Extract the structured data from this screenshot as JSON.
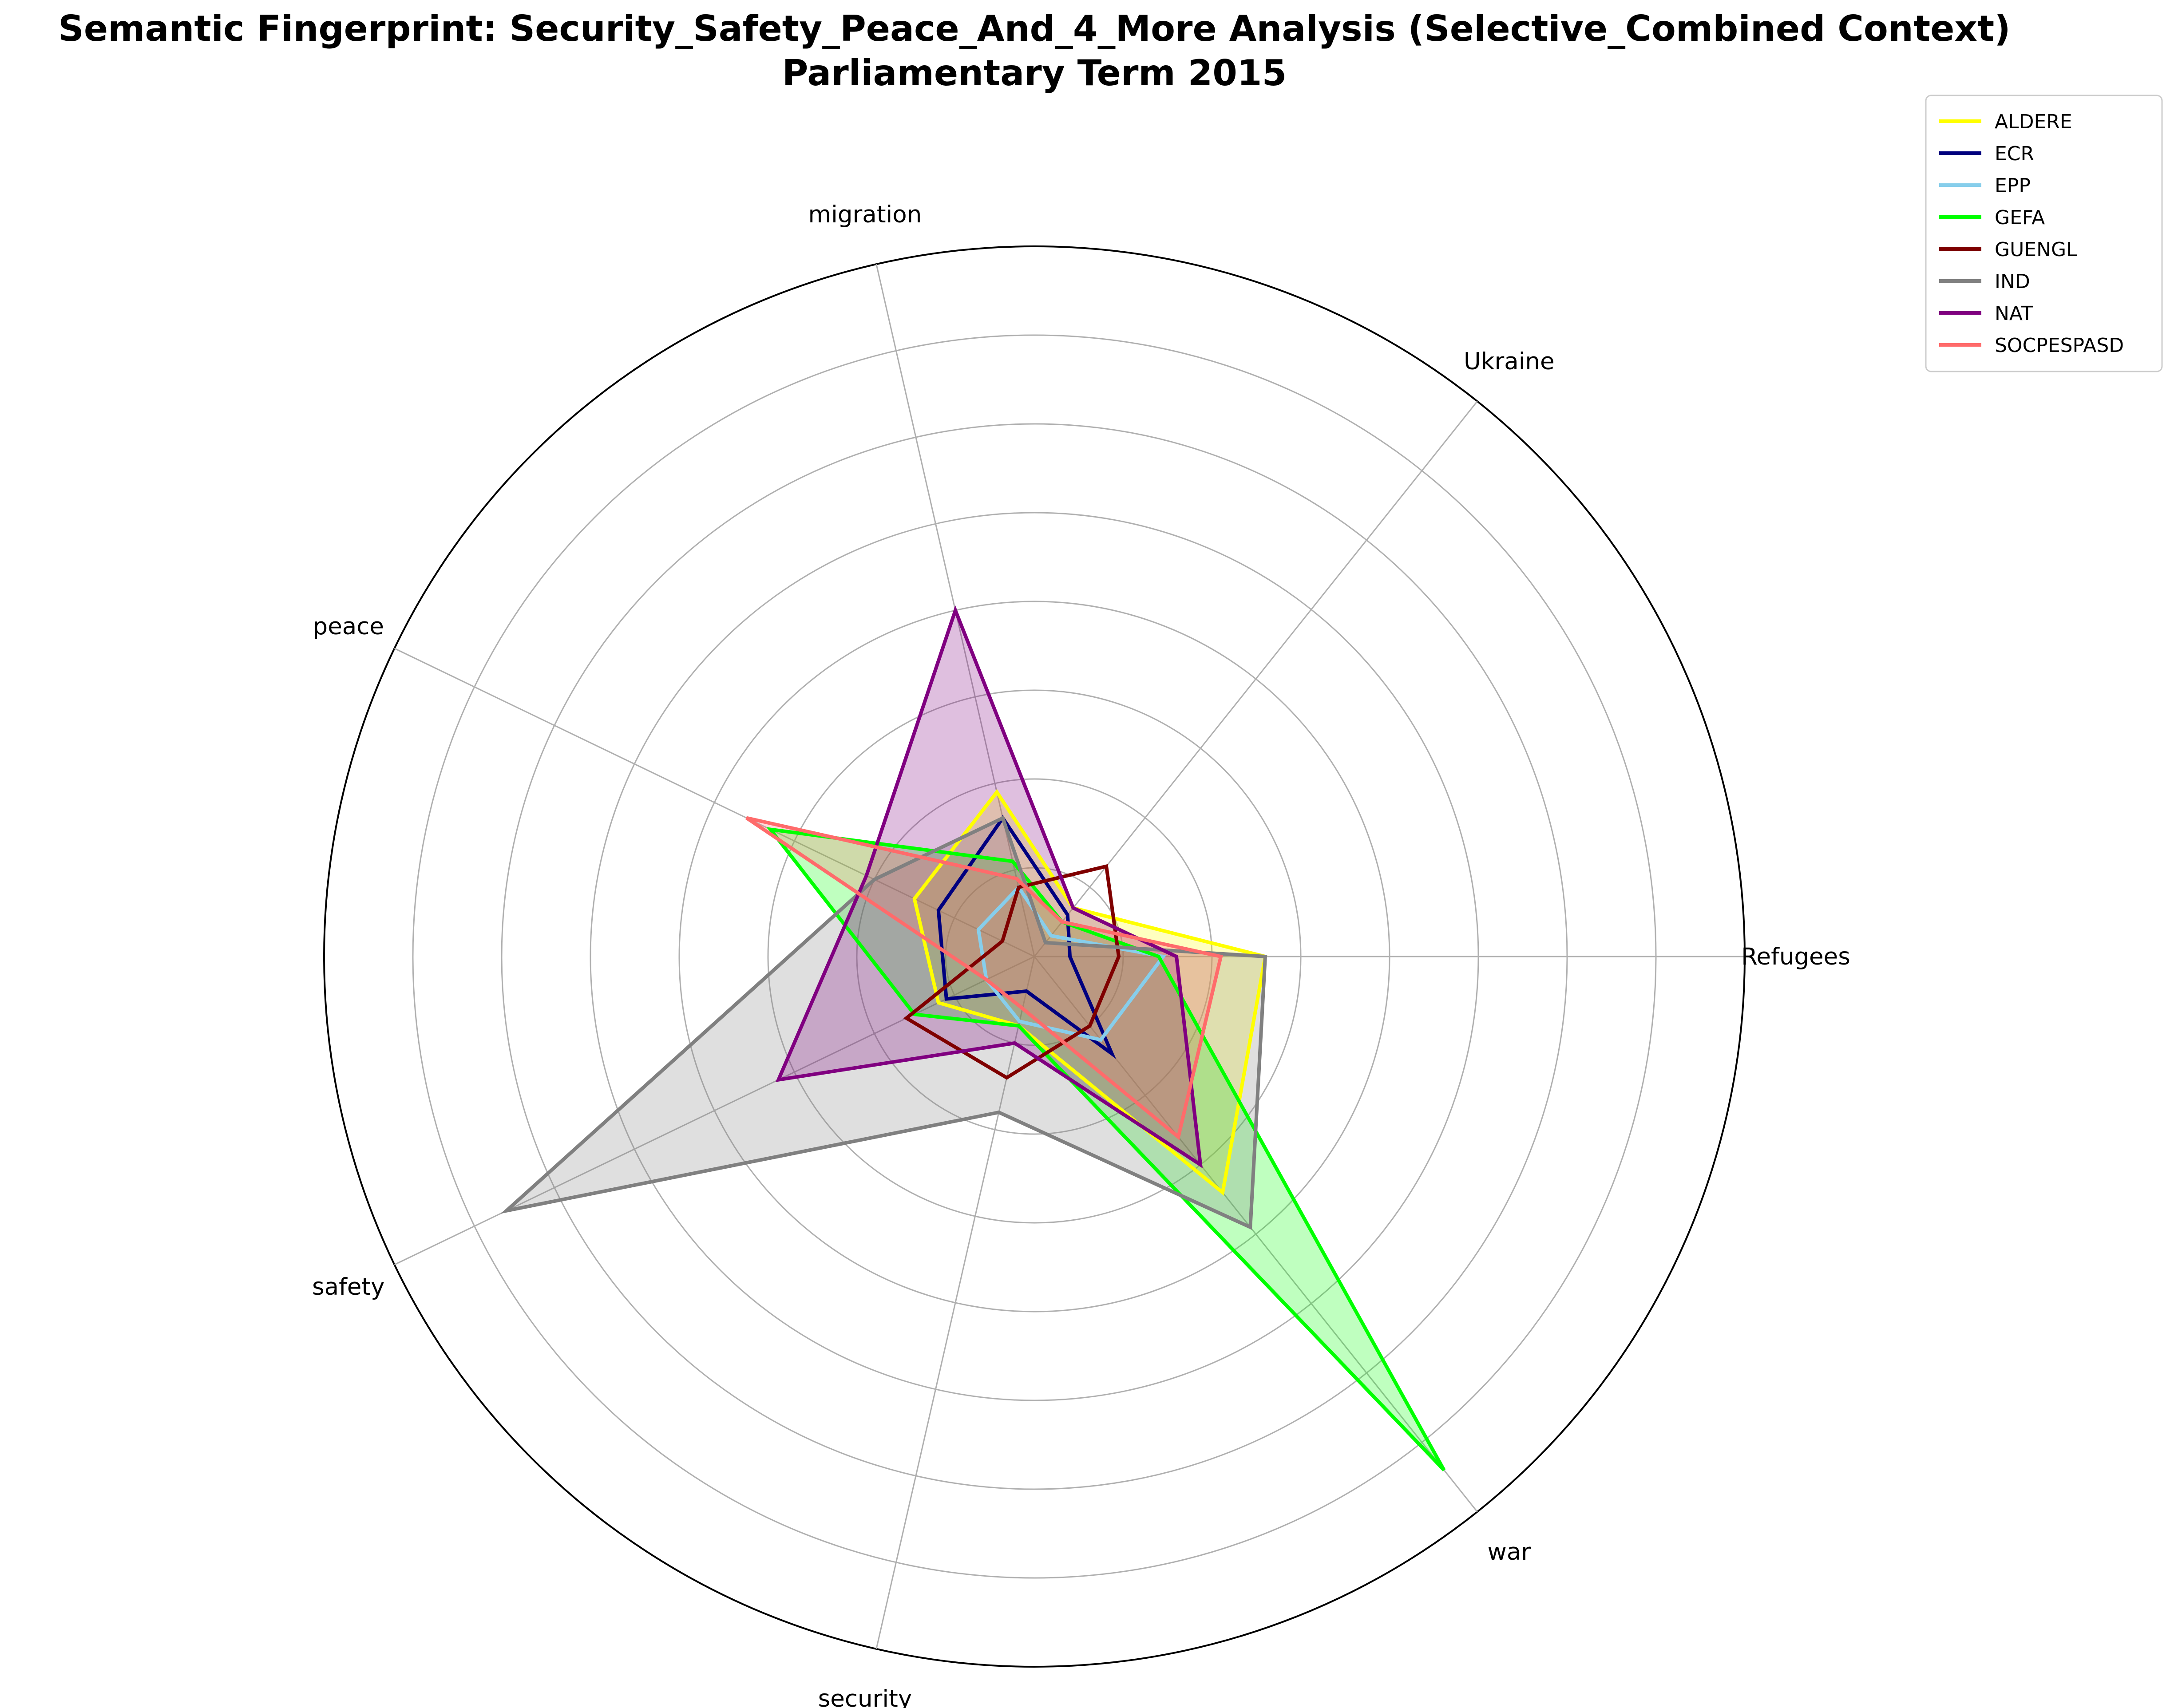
{
  "chart_data": {
    "type": "radar",
    "title_lines": [
      "Semantic Fingerprint: Security_Safety_Peace_And_4_More Analysis (Selective_Combined Context)",
      "Parliamentary Term 2015"
    ],
    "categories": [
      "Refugees",
      "Ukraine",
      "migration",
      "peace",
      "safety",
      "security",
      "war"
    ],
    "grid": true,
    "legend_position": "top-right",
    "series": [
      {
        "name": "ALDERE",
        "color": "#ffff00",
        "filled": true,
        "values": [
          0.26,
          0.07,
          0.19,
          0.15,
          0.12,
          0.08,
          0.34
        ]
      },
      {
        "name": "ECR",
        "color": "#00007f",
        "filled": false,
        "values": [
          0.04,
          0.06,
          0.16,
          0.12,
          0.11,
          0.04,
          0.14
        ]
      },
      {
        "name": "EPP",
        "color": "#87ceeb",
        "filled": false,
        "values": [
          0.145,
          0.03,
          0.08,
          0.07,
          0.06,
          0.075,
          0.12
        ]
      },
      {
        "name": "GEFA",
        "color": "#00ff00",
        "filled": true,
        "values": [
          0.14,
          0.05,
          0.11,
          0.33,
          0.15,
          0.08,
          0.74
        ]
      },
      {
        "name": "GUENGL",
        "color": "#7f0000",
        "filled": false,
        "values": [
          0.095,
          0.13,
          0.08,
          0.04,
          0.16,
          0.14,
          0.1
        ]
      },
      {
        "name": "IND",
        "color": "#808080",
        "filled": true,
        "values": [
          0.26,
          0.02,
          0.16,
          0.2,
          0.66,
          0.18,
          0.39
        ]
      },
      {
        "name": "NAT",
        "color": "#800080",
        "filled": true,
        "values": [
          0.16,
          0.07,
          0.4,
          0.21,
          0.32,
          0.1,
          0.3
        ]
      },
      {
        "name": "SOCPESPASD",
        "color": "#ff6b6b",
        "filled": true,
        "values": [
          0.21,
          0.05,
          0.09,
          0.36,
          0.06,
          0.06,
          0.26
        ]
      }
    ]
  }
}
